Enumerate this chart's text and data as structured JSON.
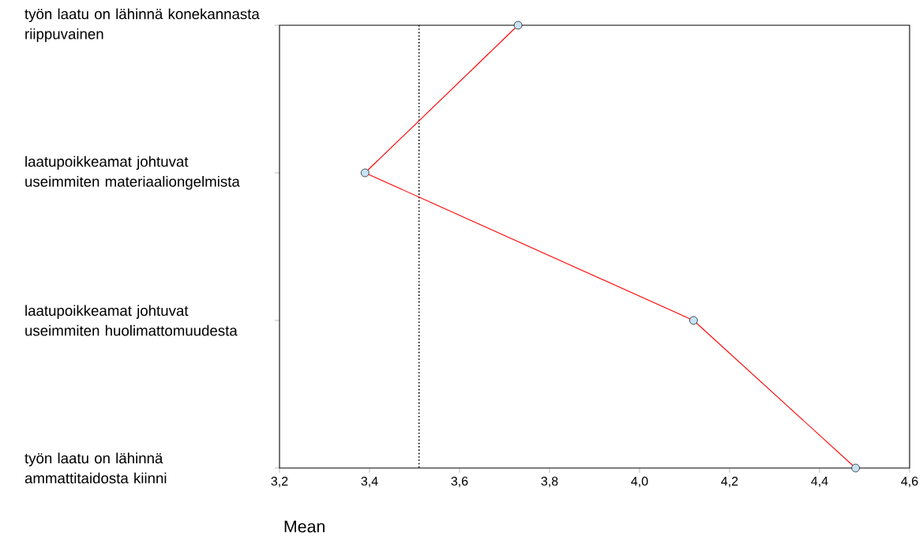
{
  "chart_data": {
    "type": "line",
    "orientation": "horizontal",
    "categories": [
      "työn laatu on lähinnä konekannasta riippuvainen",
      "laatupoikkeamat johtuvat useimmiten materiaaliongelmista",
      "laatupoikkeamat johtuvat useimmiten huolimattomuudesta",
      "työn laatu on lähinnä ammattitaidosta kiinni"
    ],
    "series": [
      {
        "color": "#ff0000",
        "values": [
          3.73,
          3.39,
          4.12,
          4.48
        ]
      }
    ],
    "xlabel": "Mean",
    "xlim": [
      3.2,
      4.6
    ],
    "xticks": [
      {
        "value": 3.2,
        "label": "3,2"
      },
      {
        "value": 3.4,
        "label": "3,4"
      },
      {
        "value": 3.6,
        "label": "3,6"
      },
      {
        "value": 3.8,
        "label": "3,8"
      },
      {
        "value": 4.0,
        "label": "4,0"
      },
      {
        "value": 4.2,
        "label": "4,2"
      },
      {
        "value": 4.4,
        "label": "4,4"
      },
      {
        "value": 4.6,
        "label": "4,6"
      }
    ],
    "ref_lines": [
      {
        "axis": "x",
        "value": 3.51,
        "color": "#000000",
        "line_style": "dotted"
      }
    ],
    "marker": "circle",
    "grid": false
  }
}
